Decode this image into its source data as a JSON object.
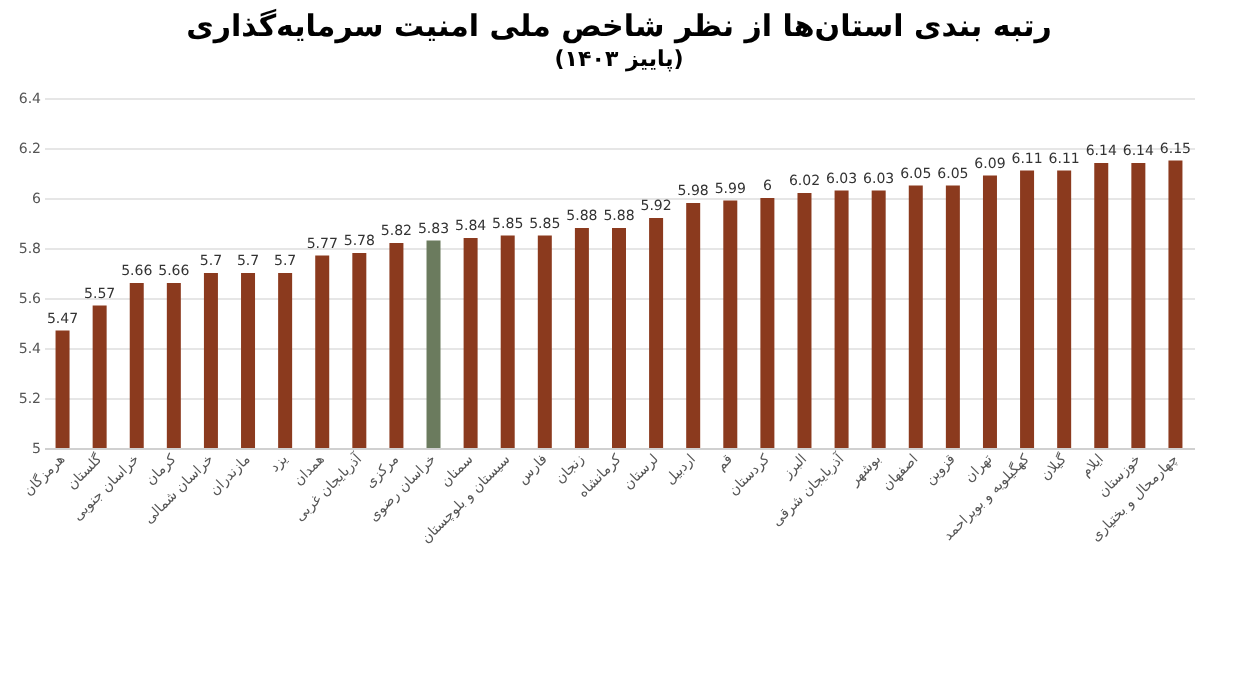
{
  "chart_data": {
    "type": "bar",
    "title": "رتبه بندی استان‌ها از نظر شاخص ملی امنیت سرمایه‌گذاری",
    "subtitle": "(پاییز ۱۴۰۳)",
    "categories": [
      "هرمزگان",
      "گلستان",
      "خراسان جنوبی",
      "کرمان",
      "خراسان شمالی",
      "مازندران",
      "یزد",
      "همدان",
      "آذربایجان غربی",
      "مرکزی",
      "خراسان رضوی",
      "سمنان",
      "سیستان و بلوچستان",
      "فارس",
      "زنجان",
      "کرمانشاه",
      "لرستان",
      "اردبیل",
      "قم",
      "کردستان",
      "البرز",
      "آذربایجان شرقی",
      "بوشهر",
      "اصفهان",
      "قزوین",
      "تهران",
      "کهگیلویه و بویراحمد",
      "گیلان",
      "ایلام",
      "خوزستان",
      "چهارمحال و بختیاری"
    ],
    "values": [
      5.47,
      5.57,
      5.66,
      5.66,
      5.7,
      5.7,
      5.7,
      5.77,
      5.78,
      5.82,
      5.83,
      5.84,
      5.85,
      5.85,
      5.88,
      5.88,
      5.92,
      5.98,
      5.99,
      6,
      6.02,
      6.03,
      6.03,
      6.05,
      6.05,
      6.09,
      6.11,
      6.11,
      6.14,
      6.14,
      6.15
    ],
    "colors": [
      "#8b3a1e",
      "#8b3a1e",
      "#8b3a1e",
      "#8b3a1e",
      "#8b3a1e",
      "#8b3a1e",
      "#8b3a1e",
      "#8b3a1e",
      "#8b3a1e",
      "#8b3a1e",
      "#6b7b5e",
      "#8b3a1e",
      "#8b3a1e",
      "#8b3a1e",
      "#8b3a1e",
      "#8b3a1e",
      "#8b3a1e",
      "#8b3a1e",
      "#8b3a1e",
      "#8b3a1e",
      "#8b3a1e",
      "#8b3a1e",
      "#8b3a1e",
      "#8b3a1e",
      "#8b3a1e",
      "#8b3a1e",
      "#8b3a1e",
      "#8b3a1e",
      "#8b3a1e",
      "#8b3a1e",
      "#8b3a1e"
    ],
    "ylim": [
      5,
      6.4
    ],
    "yticks": [
      5,
      5.2,
      5.4,
      5.6,
      5.8,
      6,
      6.2,
      6.4
    ],
    "grid": "y",
    "data_labels": true
  }
}
